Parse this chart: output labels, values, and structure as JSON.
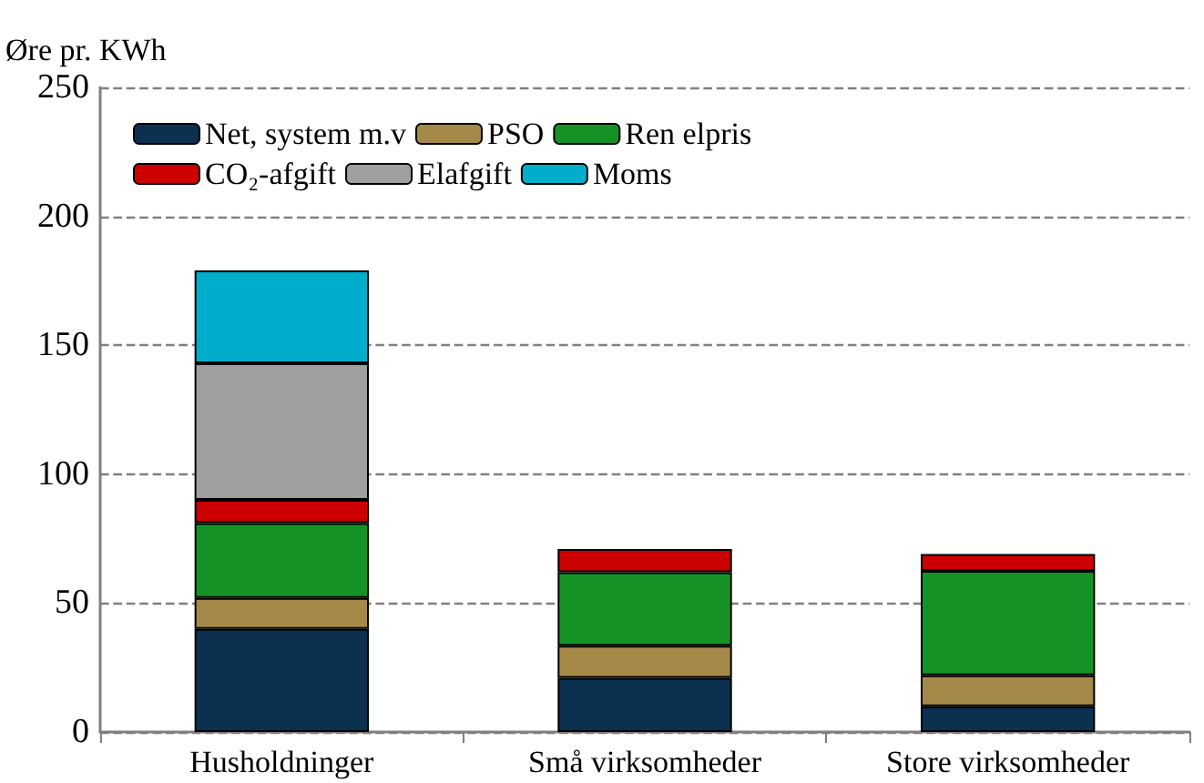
{
  "chart_data": {
    "type": "bar",
    "stacked": true,
    "ylabel": "Øre pr. KWh",
    "categories": [
      "Husholdninger",
      "Små virksomheder",
      "Store virksomheder"
    ],
    "series": [
      {
        "name": "Net, system m.v",
        "color": "#0b3050",
        "values": [
          40,
          21,
          10
        ]
      },
      {
        "name": "PSO",
        "color": "#a58948",
        "values": [
          12,
          12.5,
          12
        ]
      },
      {
        "name": "Ren elpris",
        "color": "#159226",
        "values": [
          29,
          28.5,
          40.5
        ]
      },
      {
        "name": "CO₂-afgift",
        "color": "#cc0000",
        "values": [
          9,
          9,
          6.5
        ]
      },
      {
        "name": "Elafgift",
        "color": "#a0a0a0",
        "values": [
          53,
          null,
          null
        ]
      },
      {
        "name": "Moms",
        "color": "#00aecc",
        "values": [
          36,
          null,
          null
        ]
      }
    ],
    "ylim": [
      0,
      250
    ],
    "yticks": [
      0,
      50,
      100,
      150,
      200,
      250
    ],
    "grid": "y",
    "legend": "top left"
  }
}
